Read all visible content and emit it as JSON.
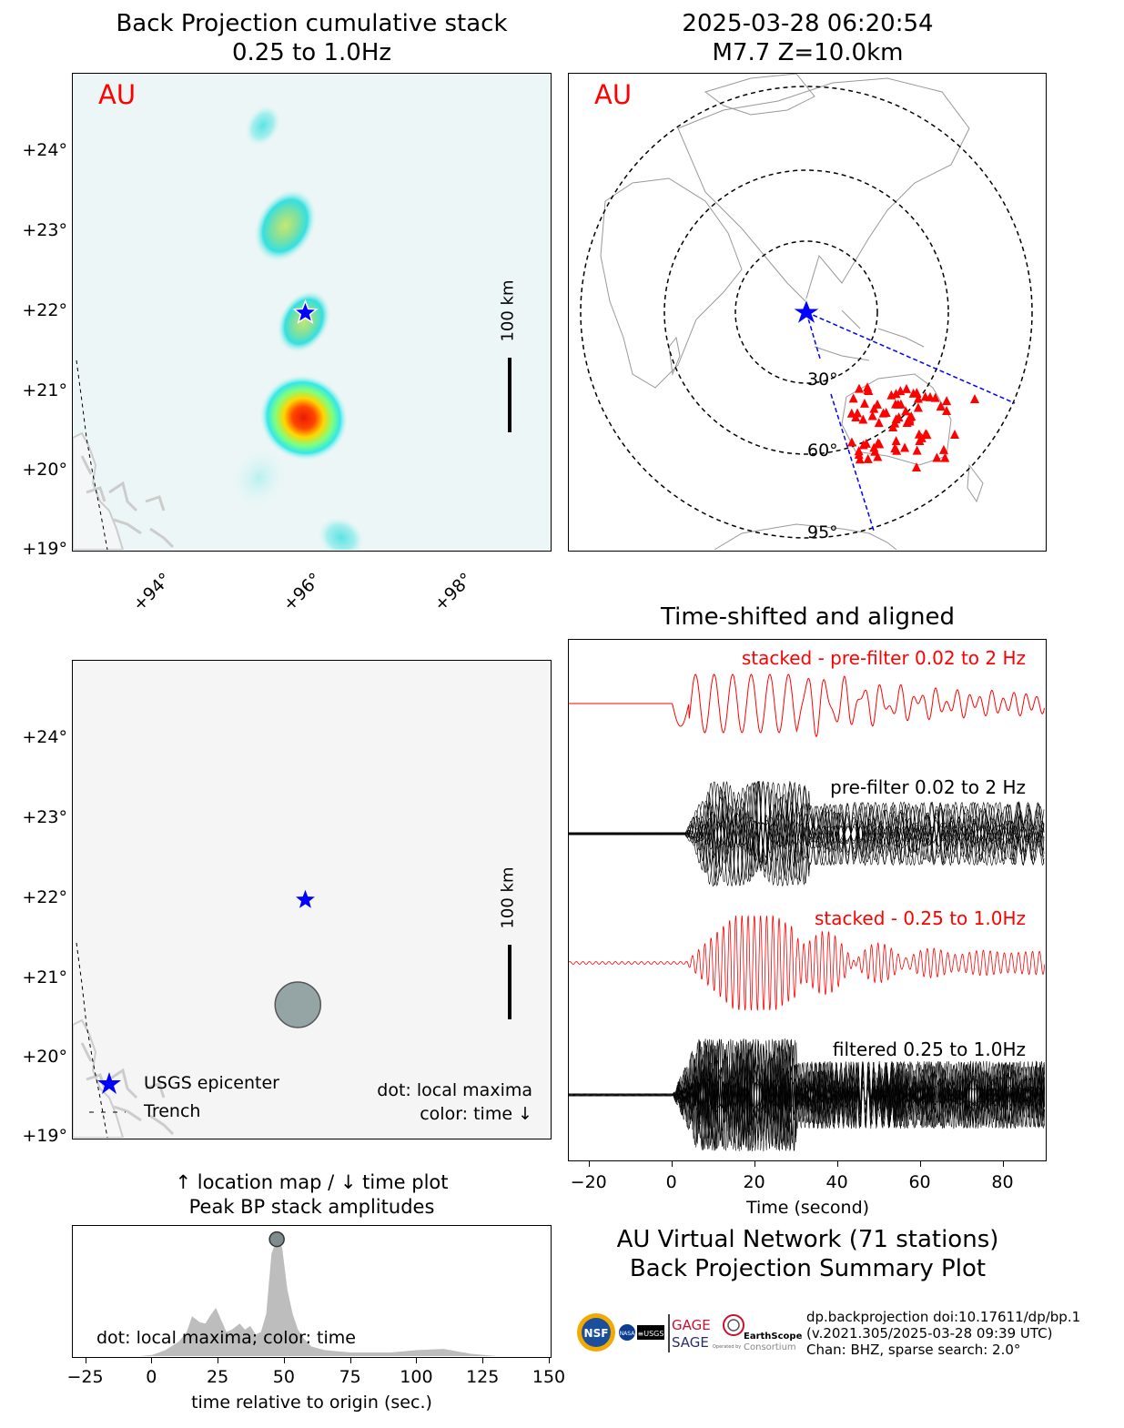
{
  "map_bp": {
    "title": "Back Projection cumulative stack\n0.25 to 1.0Hz",
    "network_label": "AU",
    "lat_ticks": [
      "+19°",
      "+20°",
      "+21°",
      "+22°",
      "+23°",
      "+24°"
    ],
    "lon_ticks": [
      "+94°",
      "+96°",
      "+98°"
    ],
    "scale_label": "100 km",
    "colors": {
      "star": "#0000ff",
      "label": "#ff0000",
      "coast": "#c8c8c8"
    }
  },
  "globe": {
    "title": "2025-03-28 06:20:54\nM7.7 Z=10.0km",
    "network_label": "AU",
    "rings": [
      "30°",
      "60°",
      "95°"
    ],
    "station_count": 71,
    "colors": {
      "station": "#ff0000",
      "ring": "#000000",
      "beam": "#0000ff"
    }
  },
  "map_maxima": {
    "lat_ticks": [
      "+19°",
      "+20°",
      "+21°",
      "+22°",
      "+23°",
      "+24°"
    ],
    "scale_label": "100 km",
    "legend": {
      "epicenter": "USGS epicenter",
      "trench": "Trench"
    },
    "note_line1": "dot: local maxima",
    "note_line2": "color: time ↓",
    "colors": {
      "dot": "#95a5a6",
      "star": "#0000ff"
    }
  },
  "traces": {
    "title": "Time-shifted and aligned",
    "labels": {
      "stacked_pre": "stacked - pre-filter 0.02 to 2 Hz",
      "pre": "pre-filter 0.02 to 2 Hz",
      "stacked_band": "stacked - 0.25 to 1.0Hz",
      "band": "filtered 0.25 to 1.0Hz"
    },
    "xlabel": "Time (second)",
    "xticks": [
      "−20",
      "0",
      "20",
      "40",
      "60",
      "80"
    ],
    "colors": {
      "stack": "#ff0000",
      "trace": "#000000"
    }
  },
  "peak": {
    "title": "↑ location map / ↓ time plot\nPeak BP stack amplitudes",
    "note": "dot: local maxima; color: time",
    "xlabel": "time relative to origin (sec.)",
    "xticks": [
      "−25",
      "0",
      "25",
      "50",
      "75",
      "100",
      "125",
      "150"
    ]
  },
  "summary": {
    "title": "AU Virtual Network (71 stations)\nBack Projection Summary Plot",
    "meta_line1": "dp.backprojection doi:10.17611/dp/bp.1",
    "meta_line2": "(v.2021.305/2025-03-28 09:39 UTC)",
    "meta_line3": "Chan: BHZ, sparse search: 2.0°",
    "logos": {
      "nsf": "NSF",
      "usgs": "≡USGS",
      "gage": "GAGE",
      "sage": "SAGE",
      "earthscope": "EarthScope",
      "consortium": "Consortium",
      "operated": "Operated by"
    }
  },
  "chart_data": [
    {
      "type": "heatmap",
      "title": "Back Projection cumulative stack 0.25 to 1.0Hz",
      "xlim": [
        92.8,
        99.2
      ],
      "ylim": [
        19.0,
        24.95
      ],
      "epicenter": {
        "lon": 95.92,
        "lat": 21.96
      },
      "blobs": [
        {
          "lon": 95.9,
          "lat": 20.65,
          "sx": 0.55,
          "sy": 0.38,
          "amp": 1.0
        },
        {
          "lon": 95.9,
          "lat": 21.85,
          "sx": 0.3,
          "sy": 0.3,
          "amp": 0.45
        },
        {
          "lon": 95.65,
          "lat": 23.05,
          "sx": 0.35,
          "sy": 0.35,
          "amp": 0.45
        },
        {
          "lon": 95.35,
          "lat": 24.3,
          "sx": 0.2,
          "sy": 0.2,
          "amp": 0.15
        },
        {
          "lon": 96.4,
          "lat": 19.15,
          "sx": 0.3,
          "sy": 0.18,
          "amp": 0.2
        },
        {
          "lon": 95.3,
          "lat": 19.9,
          "sx": 0.35,
          "sy": 0.3,
          "amp": 0.12
        }
      ]
    },
    {
      "type": "scatter",
      "title": "local maxima",
      "xlim": [
        92.8,
        99.2
      ],
      "ylim": [
        19.0,
        24.95
      ],
      "points": [
        {
          "lon": 95.82,
          "lat": 20.65
        }
      ],
      "epicenter": {
        "lon": 95.92,
        "lat": 21.96
      }
    },
    {
      "type": "area",
      "title": "Peak BP stack amplitudes",
      "xlabel": "time relative to origin (sec.)",
      "xlim": [
        -30,
        150
      ],
      "ylim": [
        0,
        1.05
      ],
      "x": [
        -5,
        0,
        5,
        10,
        13,
        15,
        18,
        20,
        22,
        24,
        26,
        28,
        30,
        33,
        35,
        37,
        39,
        41,
        43,
        45,
        47,
        49,
        51,
        53,
        55,
        57,
        60,
        65,
        70,
        75,
        80,
        90,
        100,
        110,
        115,
        120,
        130
      ],
      "values": [
        0,
        0.01,
        0.05,
        0.12,
        0.2,
        0.33,
        0.28,
        0.27,
        0.34,
        0.4,
        0.3,
        0.2,
        0.22,
        0.27,
        0.22,
        0.25,
        0.18,
        0.2,
        0.35,
        0.85,
        0.97,
        0.9,
        0.55,
        0.35,
        0.22,
        0.15,
        0.08,
        0.05,
        0.04,
        0.03,
        0.03,
        0.03,
        0.05,
        0.06,
        0.04,
        0.02,
        0
      ],
      "maxima": [
        {
          "x": 47,
          "y": 0.97
        }
      ]
    },
    {
      "type": "line",
      "title": "Time-shifted and aligned",
      "xlabel": "Time (second)",
      "xlim": [
        -25,
        90
      ],
      "series": [
        {
          "name": "stacked - pre-filter 0.02 to 2 Hz"
        },
        {
          "name": "pre-filter 0.02 to 2 Hz"
        },
        {
          "name": "stacked - 0.25 to 1.0Hz"
        },
        {
          "name": "filtered 0.25 to 1.0Hz"
        }
      ]
    }
  ]
}
